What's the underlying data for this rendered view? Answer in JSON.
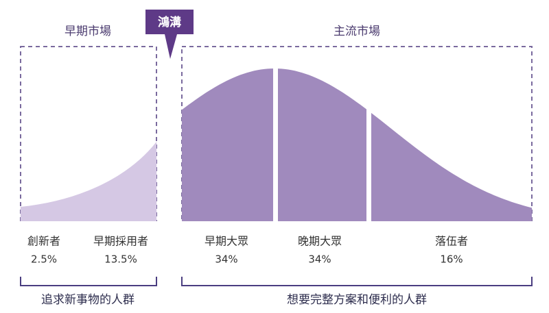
{
  "markets": {
    "early": "早期市場",
    "mainstream": "主流市場"
  },
  "chasm": "鴻溝",
  "segments": [
    {
      "name": "創新者",
      "share": "2.5%"
    },
    {
      "name": "早期採用者",
      "share": "13.5%"
    },
    {
      "name": "早期大眾",
      "share": "34%"
    },
    {
      "name": "晚期大眾",
      "share": "34%"
    },
    {
      "name": "落伍者",
      "share": "16%"
    }
  ],
  "groups": [
    "追求新事物的人群",
    "想要完整方案和便利的人群"
  ]
}
